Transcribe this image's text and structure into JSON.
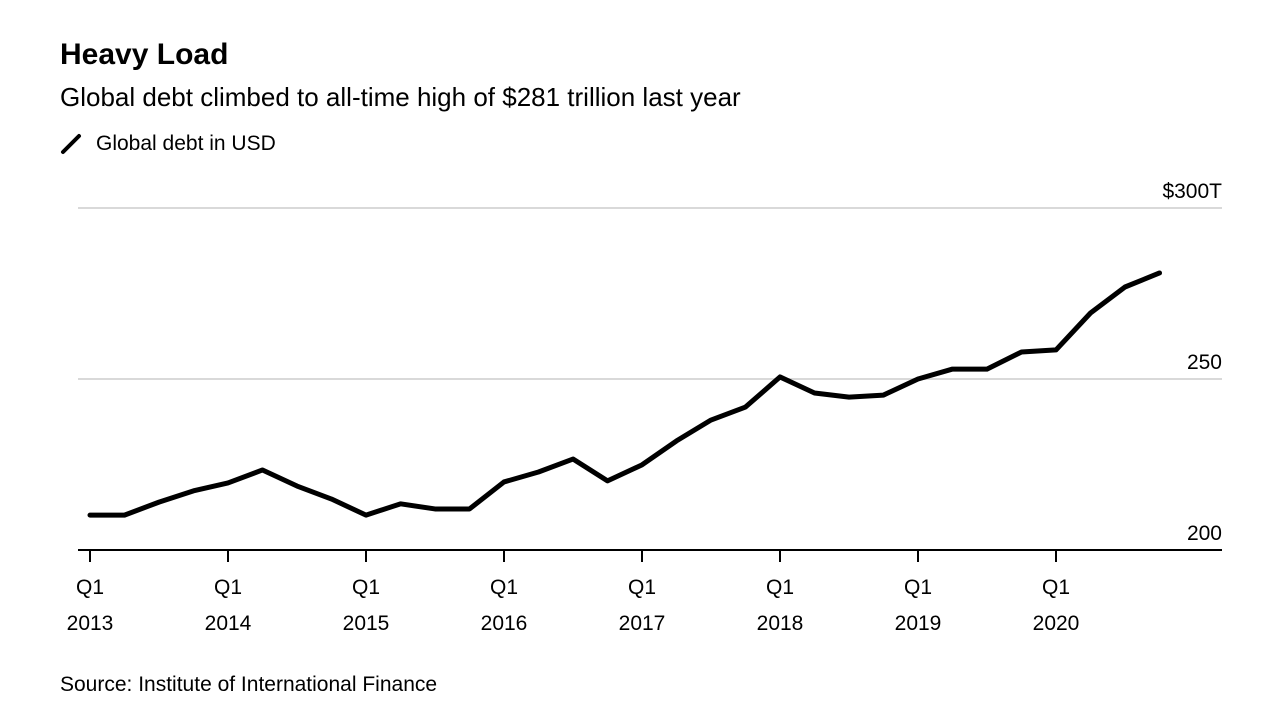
{
  "header": {
    "title": "Heavy Load",
    "subtitle": "Global debt climbed to all-time high of $281 trillion last year"
  },
  "footer": {
    "source": "Source: Institute of International Finance"
  },
  "chart_data": {
    "type": "line",
    "title": "Heavy Load",
    "subtitle": "Global debt climbed to all-time high of $281 trillion last year",
    "legend_position": "top-left",
    "grid": true,
    "line_color": "#000000",
    "grid_color": "#d9d9d9",
    "ylim": [
      200,
      300
    ],
    "y_ticks": [
      {
        "value": 300,
        "label": "$300T"
      },
      {
        "value": 250,
        "label": "250"
      },
      {
        "value": 200,
        "label": "200"
      }
    ],
    "x_ticks": [
      {
        "index": 0,
        "line1": "Q1",
        "line2": "2013"
      },
      {
        "index": 4,
        "line1": "Q1",
        "line2": "2014"
      },
      {
        "index": 8,
        "line1": "Q1",
        "line2": "2015"
      },
      {
        "index": 12,
        "line1": "Q1",
        "line2": "2016"
      },
      {
        "index": 16,
        "line1": "Q1",
        "line2": "2017"
      },
      {
        "index": 20,
        "line1": "Q1",
        "line2": "2018"
      },
      {
        "index": 24,
        "line1": "Q1",
        "line2": "2019"
      },
      {
        "index": 28,
        "line1": "Q1",
        "line2": "2020"
      }
    ],
    "x": [
      "Q1 2013",
      "Q2 2013",
      "Q3 2013",
      "Q4 2013",
      "Q1 2014",
      "Q2 2014",
      "Q3 2014",
      "Q4 2014",
      "Q1 2015",
      "Q2 2015",
      "Q3 2015",
      "Q4 2015",
      "Q1 2016",
      "Q2 2016",
      "Q3 2016",
      "Q4 2016",
      "Q1 2017",
      "Q2 2017",
      "Q3 2017",
      "Q4 2017",
      "Q1 2018",
      "Q2 2018",
      "Q3 2018",
      "Q4 2018",
      "Q1 2019",
      "Q2 2019",
      "Q3 2019",
      "Q4 2019",
      "Q1 2020",
      "Q2 2020",
      "Q3 2020",
      "Q4 2020"
    ],
    "series": [
      {
        "name": "Global debt in USD",
        "values": [
          210.2,
          210.2,
          214,
          217.3,
          219.6,
          223.4,
          218.7,
          214.9,
          210.2,
          213.5,
          212,
          212,
          219.9,
          222.8,
          226.6,
          220.2,
          224.9,
          231.9,
          238,
          241.8,
          250.6,
          245.9,
          244.7,
          245.3,
          250,
          252.9,
          252.9,
          257.9,
          258.5,
          269.3,
          276.9,
          281
        ]
      }
    ]
  }
}
